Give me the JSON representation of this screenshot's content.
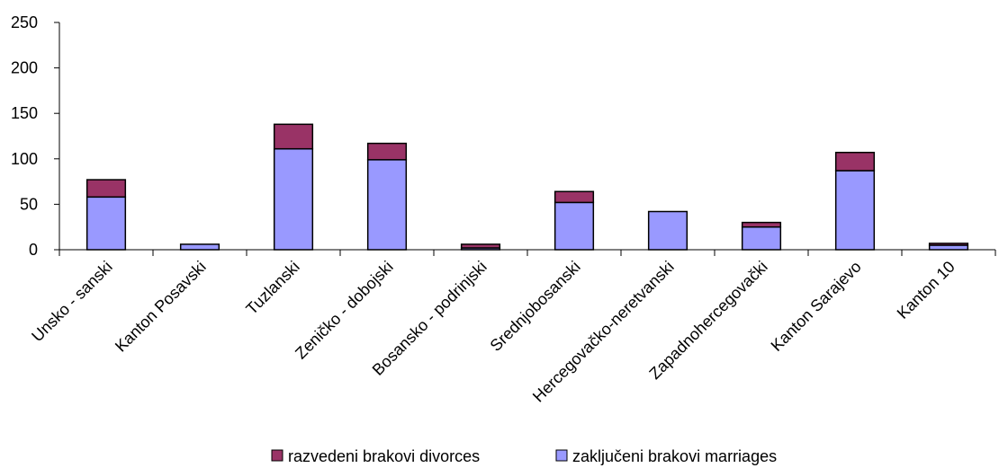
{
  "chart_data": {
    "type": "bar",
    "stacked": true,
    "title": "",
    "xlabel": "",
    "ylabel": "",
    "ylim": [
      0,
      250
    ],
    "yticks": [
      0,
      50,
      100,
      150,
      200,
      250
    ],
    "grid": false,
    "legend_position": "bottom",
    "categories": [
      "Unsko - sanski",
      "Kanton Posavski",
      "Tuzlanski",
      "Zeničko - dobojski",
      "Bosansko - podrinjski",
      "Srednjobosanski",
      "Hercegovačko-neretvanski",
      "Zapadnohercegovački",
      "Kanton Sarajevo",
      "Kanton 10"
    ],
    "series": [
      {
        "name": "zaključeni brakovi marriages",
        "color": "#9999ff",
        "values": [
          58,
          6,
          111,
          99,
          2,
          52,
          42,
          25,
          87,
          5
        ]
      },
      {
        "name": "razvedeni brakovi divorces",
        "color": "#993366",
        "values": [
          19,
          0,
          27,
          18,
          4,
          12,
          0,
          5,
          20,
          2
        ]
      }
    ],
    "legend_order": [
      "razvedeni brakovi divorces",
      "zaključeni brakovi marriages"
    ]
  }
}
